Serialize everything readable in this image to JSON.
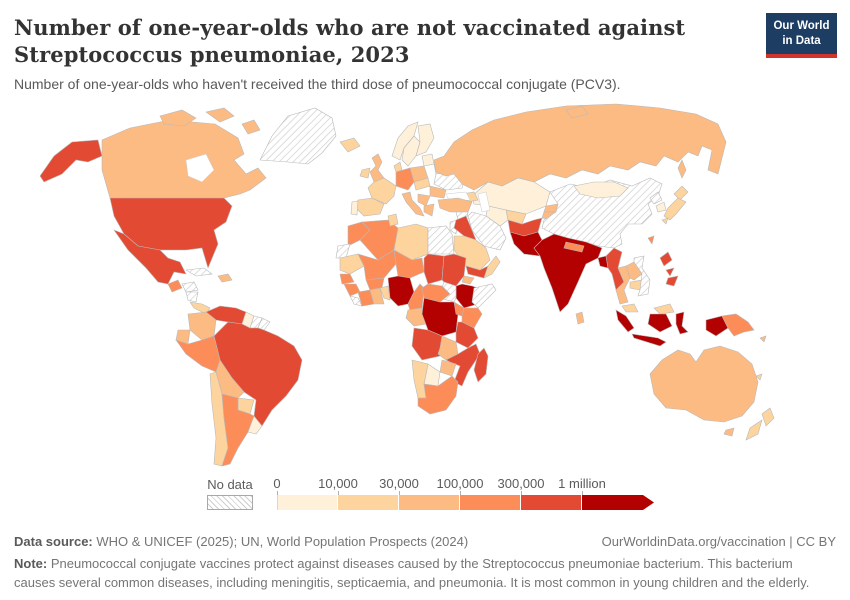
{
  "header": {
    "title": "Number of one-year-olds who are not vaccinated against Streptococcus pneumoniae, 2023",
    "subtitle": "Number of one-year-olds who haven't received the third dose of pneumococcal conjugate (PCV3).",
    "logo": {
      "line1": "Our World",
      "line2": "in Data",
      "bg_color": "#1d3d63",
      "accent_color": "#d0342a"
    }
  },
  "footer": {
    "data_source_label": "Data source:",
    "data_source": " WHO & UNICEF (2025); UN, World Population Prospects (2024)",
    "attribution": "OurWorldinData.org/vaccination | CC BY",
    "note_label": "Note:",
    "note": " Pneumococcal conjugate vaccines protect against diseases caused by the Streptococcus pneumoniae bacterium. This bacterium causes several common diseases, including meningitis, septicaemia, and pneumonia. It is most common in young children and the elderly."
  },
  "chart_data": {
    "type": "heatmap",
    "subtype": "choropleth_world_map",
    "title": "Number of one-year-olds who are not vaccinated against Streptococcus pneumoniae",
    "year": "2023",
    "unit": "one-year-olds not vaccinated (PCV3 third dose not received)",
    "legend": {
      "no_data_label": "No data",
      "tick_labels": [
        "0",
        "10,000",
        "30,000",
        "100,000",
        "300,000",
        "1 million"
      ],
      "bin_labels": [
        "0-10,000",
        "10,000-30,000",
        "30,000-100,000",
        "100,000-300,000",
        "300,000-1 million",
        "More than 1 million"
      ]
    },
    "bin_colors": [
      "#fef0d9",
      "#fdd49e",
      "#fdbb84",
      "#fc8d59",
      "#e34a33",
      "#b30000"
    ],
    "no_data_bin": -1,
    "countries": {
      "greenland": {
        "name": "Greenland",
        "bin": -1
      },
      "canada": {
        "name": "Canada",
        "bin": 2
      },
      "united-states": {
        "name": "United States",
        "bin": 4
      },
      "mexico": {
        "name": "Mexico",
        "bin": 4
      },
      "guatemala": {
        "name": "Guatemala",
        "bin": 3
      },
      "honduras": {
        "name": "Honduras",
        "bin": -1
      },
      "nicaragua": {
        "name": "Nicaragua",
        "bin": -1
      },
      "costa-rica-panama": {
        "name": "Costa Rica & Panama",
        "bin": 1
      },
      "cuba": {
        "name": "Cuba",
        "bin": -1
      },
      "hispaniola": {
        "name": "Haiti & Dominican Republic",
        "bin": 2
      },
      "venezuela": {
        "name": "Venezuela",
        "bin": 4
      },
      "colombia": {
        "name": "Colombia",
        "bin": 2
      },
      "guyana": {
        "name": "Guyana",
        "bin": 0
      },
      "suriname": {
        "name": "Suriname",
        "bin": -1
      },
      "french-guiana": {
        "name": "French Guiana",
        "bin": -1
      },
      "ecuador": {
        "name": "Ecuador",
        "bin": 2
      },
      "peru": {
        "name": "Peru",
        "bin": 3
      },
      "brazil": {
        "name": "Brazil",
        "bin": 4
      },
      "bolivia": {
        "name": "Bolivia",
        "bin": 2
      },
      "paraguay": {
        "name": "Paraguay",
        "bin": 1
      },
      "chile": {
        "name": "Chile",
        "bin": 1
      },
      "argentina": {
        "name": "Argentina",
        "bin": 3
      },
      "uruguay": {
        "name": "Uruguay",
        "bin": 0
      },
      "iceland": {
        "name": "Iceland",
        "bin": 1
      },
      "ireland": {
        "name": "Ireland",
        "bin": 1
      },
      "united-kingdom": {
        "name": "United Kingdom",
        "bin": 2
      },
      "norway": {
        "name": "Norway",
        "bin": 0
      },
      "sweden": {
        "name": "Sweden",
        "bin": 0
      },
      "finland": {
        "name": "Finland",
        "bin": 0
      },
      "denmark": {
        "name": "Denmark",
        "bin": 1
      },
      "baltic-states": {
        "name": "Baltic states",
        "bin": 0
      },
      "belarus": {
        "name": "Belarus",
        "bin": 0
      },
      "poland": {
        "name": "Poland",
        "bin": 2
      },
      "germany": {
        "name": "Germany",
        "bin": 3
      },
      "france": {
        "name": "France",
        "bin": 1
      },
      "spain": {
        "name": "Spain",
        "bin": 1
      },
      "portugal": {
        "name": "Portugal",
        "bin": 0
      },
      "italy": {
        "name": "Italy",
        "bin": 2
      },
      "austria-czechia": {
        "name": "Austria & Czechia",
        "bin": 1
      },
      "balkans": {
        "name": "Balkans",
        "bin": 2
      },
      "romania": {
        "name": "Romania",
        "bin": 2
      },
      "greece": {
        "name": "Greece",
        "bin": 2
      },
      "ukraine": {
        "name": "Ukraine",
        "bin": -1
      },
      "turkey": {
        "name": "Turkey",
        "bin": 2
      },
      "caucasus": {
        "name": "Caucasus",
        "bin": 1
      },
      "russia": {
        "name": "Russia",
        "bin": 2
      },
      "kazakhstan": {
        "name": "Kazakhstan",
        "bin": 0
      },
      "turkmenistan": {
        "name": "Turkmenistan",
        "bin": 0
      },
      "uzbekistan": {
        "name": "Uzbekistan",
        "bin": 1
      },
      "kyrgyzstan": {
        "name": "Kyrgyzstan",
        "bin": 2
      },
      "tajikistan": {
        "name": "Tajikistan",
        "bin": 2
      },
      "china": {
        "name": "China",
        "bin": -1
      },
      "mongolia": {
        "name": "Mongolia",
        "bin": 0
      },
      "north-korea": {
        "name": "North Korea",
        "bin": -1
      },
      "south-korea": {
        "name": "South Korea",
        "bin": 0
      },
      "japan": {
        "name": "Japan",
        "bin": 1
      },
      "taiwan": {
        "name": "Taiwan",
        "bin": 3
      },
      "india": {
        "name": "India",
        "bin": 5
      },
      "pakistan": {
        "name": "Pakistan",
        "bin": 5
      },
      "afghanistan": {
        "name": "Afghanistan",
        "bin": 4
      },
      "nepal": {
        "name": "Nepal",
        "bin": 3
      },
      "bangladesh": {
        "name": "Bangladesh",
        "bin": 5
      },
      "sri-lanka": {
        "name": "Sri Lanka",
        "bin": 2
      },
      "myanmar": {
        "name": "Myanmar",
        "bin": 4
      },
      "thailand": {
        "name": "Thailand",
        "bin": 2
      },
      "laos": {
        "name": "Laos",
        "bin": 2
      },
      "cambodia": {
        "name": "Cambodia",
        "bin": 1
      },
      "vietnam": {
        "name": "Vietnam",
        "bin": -1
      },
      "malaysia": {
        "name": "Malaysia",
        "bin": 1
      },
      "philippines": {
        "name": "Philippines",
        "bin": 4
      },
      "indonesia": {
        "name": "Indonesia",
        "bin": 5
      },
      "papua-new-guinea": {
        "name": "Papua New Guinea",
        "bin": 3
      },
      "solomon-islands": {
        "name": "Solomon Islands",
        "bin": 2
      },
      "new-caledonia": {
        "name": "New Caledonia",
        "bin": 1
      },
      "australia": {
        "name": "Australia",
        "bin": 2
      },
      "new-zealand": {
        "name": "New Zealand",
        "bin": 1
      },
      "iran": {
        "name": "Iran",
        "bin": -1
      },
      "iraq": {
        "name": "Iraq",
        "bin": 4
      },
      "syria": {
        "name": "Syria",
        "bin": -1
      },
      "jordan-israel": {
        "name": "Jordan & Israel",
        "bin": -1
      },
      "saudi-arabia": {
        "name": "Saudi Arabia",
        "bin": 1
      },
      "yemen": {
        "name": "Yemen",
        "bin": 4
      },
      "oman": {
        "name": "Oman",
        "bin": 1
      },
      "morocco": {
        "name": "Morocco",
        "bin": 3
      },
      "western-sahara": {
        "name": "Western Sahara",
        "bin": -1
      },
      "algeria": {
        "name": "Algeria",
        "bin": 3
      },
      "tunisia": {
        "name": "Tunisia",
        "bin": 1
      },
      "libya": {
        "name": "Libya",
        "bin": 1
      },
      "egypt": {
        "name": "Egypt",
        "bin": -1
      },
      "mauritania": {
        "name": "Mauritania",
        "bin": 1
      },
      "mali": {
        "name": "Mali",
        "bin": 3
      },
      "niger": {
        "name": "Niger",
        "bin": 3
      },
      "chad": {
        "name": "Chad",
        "bin": 4
      },
      "sudan": {
        "name": "Sudan",
        "bin": 4
      },
      "south-sudan": {
        "name": "South Sudan",
        "bin": -1
      },
      "eritrea": {
        "name": "Eritrea",
        "bin": 2
      },
      "ethiopia": {
        "name": "Ethiopia",
        "bin": 5
      },
      "somalia": {
        "name": "Somalia",
        "bin": -1
      },
      "senegal": {
        "name": "Senegal",
        "bin": 3
      },
      "guinea": {
        "name": "Guinea",
        "bin": 3
      },
      "liberia": {
        "name": "Liberia & Sierra Leone",
        "bin": -1
      },
      "ivory-coast": {
        "name": "Cote d'Ivoire",
        "bin": 3
      },
      "burkina-faso": {
        "name": "Burkina Faso",
        "bin": 3
      },
      "ghana": {
        "name": "Ghana",
        "bin": 2
      },
      "togo-benin": {
        "name": "Togo & Benin",
        "bin": 1
      },
      "nigeria": {
        "name": "Nigeria",
        "bin": 5
      },
      "cameroon": {
        "name": "Cameroon",
        "bin": 3
      },
      "central-african-republic": {
        "name": "Central African Republic",
        "bin": 3
      },
      "gabon-congo": {
        "name": "Gabon & Congo",
        "bin": 2
      },
      "democratic-republic-of-congo": {
        "name": "Democratic Republic of Congo",
        "bin": 5
      },
      "uganda": {
        "name": "Uganda",
        "bin": 3
      },
      "kenya": {
        "name": "Kenya",
        "bin": 3
      },
      "tanzania": {
        "name": "Tanzania",
        "bin": 4
      },
      "angola": {
        "name": "Angola",
        "bin": 4
      },
      "zambia": {
        "name": "Zambia",
        "bin": 2
      },
      "zimbabwe": {
        "name": "Zimbabwe",
        "bin": 2
      },
      "mozambique": {
        "name": "Mozambique",
        "bin": 4
      },
      "madagascar": {
        "name": "Madagascar",
        "bin": 4
      },
      "namibia": {
        "name": "Namibia",
        "bin": 1
      },
      "botswana": {
        "name": "Botswana",
        "bin": 0
      },
      "south-africa": {
        "name": "South Africa",
        "bin": 3
      }
    }
  }
}
